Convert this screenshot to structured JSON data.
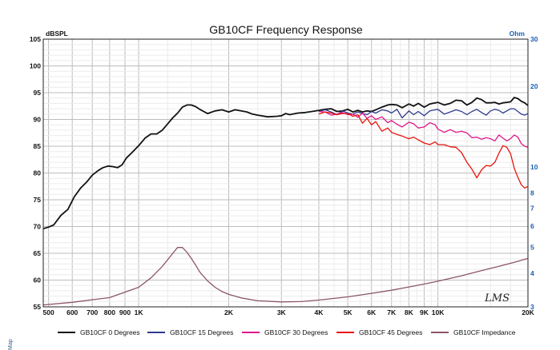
{
  "chart_data": {
    "type": "line",
    "title": "GB10CF Frequency Response",
    "ylabel": "dBSPL",
    "y2label": "Ohm",
    "xscale": "log",
    "xlim": [
      480,
      20000
    ],
    "ylim": [
      55,
      105
    ],
    "y2lim": [
      3,
      30
    ],
    "grid": true,
    "legend_position": "bottom",
    "x_ticks": [
      {
        "v": 500,
        "label": "500"
      },
      {
        "v": 600,
        "label": "600"
      },
      {
        "v": 700,
        "label": "700"
      },
      {
        "v": 800,
        "label": "800"
      },
      {
        "v": 900,
        "label": "900"
      },
      {
        "v": 1000,
        "label": "1K"
      },
      {
        "v": 2000,
        "label": "2K"
      },
      {
        "v": 3000,
        "label": "3K"
      },
      {
        "v": 4000,
        "label": "4K"
      },
      {
        "v": 5000,
        "label": "5K"
      },
      {
        "v": 6000,
        "label": "6K"
      },
      {
        "v": 7000,
        "label": "7K"
      },
      {
        "v": 8000,
        "label": "8K"
      },
      {
        "v": 9000,
        "label": "9K"
      },
      {
        "v": 10000,
        "label": "10K"
      },
      {
        "v": 20000,
        "label": "20K"
      }
    ],
    "y_ticks": [
      {
        "v": 55,
        "label": "55"
      },
      {
        "v": 60,
        "label": "60"
      },
      {
        "v": 65,
        "label": "65"
      },
      {
        "v": 70,
        "label": "70"
      },
      {
        "v": 75,
        "label": "75"
      },
      {
        "v": 80,
        "label": "80"
      },
      {
        "v": 85,
        "label": "85"
      },
      {
        "v": 90,
        "label": "90"
      },
      {
        "v": 95,
        "label": "95"
      },
      {
        "v": 100,
        "label": "100"
      },
      {
        "v": 105,
        "label": "105"
      }
    ],
    "y2_ticks": [
      {
        "v": 3,
        "label": "3"
      },
      {
        "v": 4,
        "label": "4"
      },
      {
        "v": 5,
        "label": "5"
      },
      {
        "v": 6,
        "label": "6"
      },
      {
        "v": 7,
        "label": "7"
      },
      {
        "v": 8,
        "label": "8"
      },
      {
        "v": 10,
        "label": "10"
      },
      {
        "v": 20,
        "label": "20"
      },
      {
        "v": 30,
        "label": "30"
      }
    ],
    "series": [
      {
        "name": "GB10CF 0 Degrees",
        "color": "#111111",
        "axis": "left",
        "x": [
          480,
          500,
          520,
          550,
          580,
          610,
          640,
          670,
          700,
          730,
          760,
          790,
          820,
          850,
          880,
          910,
          950,
          1000,
          1050,
          1100,
          1150,
          1200,
          1250,
          1300,
          1350,
          1400,
          1450,
          1500,
          1550,
          1600,
          1700,
          1800,
          1900,
          2000,
          2100,
          2200,
          2300,
          2400,
          2500,
          2700,
          2900,
          3000,
          3100,
          3200,
          3400,
          3600,
          3800,
          4000,
          4200,
          4400,
          4600,
          4800,
          5000,
          5200,
          5400,
          5600,
          5800,
          6000,
          6200,
          6500,
          6800,
          7000,
          7300,
          7600,
          8000,
          8300,
          8600,
          9000,
          9400,
          9800,
          10000,
          10500,
          11000,
          11500,
          12000,
          12500,
          13000,
          13500,
          14000,
          14500,
          15000,
          15500,
          16000,
          16500,
          17000,
          17500,
          18000,
          18500,
          19000,
          19500,
          20000
        ],
        "y": [
          69.6,
          69.9,
          70.3,
          72.1,
          73.2,
          75.6,
          77.2,
          78.3,
          79.6,
          80.4,
          81.0,
          81.3,
          81.2,
          81.0,
          81.5,
          82.8,
          83.8,
          85.1,
          86.5,
          87.3,
          87.3,
          88.0,
          89.2,
          90.3,
          91.2,
          92.3,
          92.7,
          92.7,
          92.4,
          91.9,
          91.1,
          91.6,
          91.8,
          91.4,
          91.8,
          91.6,
          91.4,
          91.0,
          90.8,
          90.5,
          90.6,
          90.7,
          91.1,
          90.9,
          91.2,
          91.3,
          91.5,
          91.7,
          91.9,
          92.0,
          91.5,
          91.6,
          91.9,
          91.4,
          91.7,
          91.4,
          91.6,
          91.5,
          91.8,
          92.3,
          92.7,
          92.8,
          92.7,
          92.2,
          92.9,
          92.5,
          93.0,
          92.3,
          92.9,
          93.1,
          93.2,
          92.7,
          93.0,
          93.6,
          93.5,
          92.7,
          93.2,
          94.0,
          93.7,
          93.1,
          93.1,
          93.2,
          92.9,
          93.1,
          93.2,
          93.3,
          94.1,
          93.9,
          93.4,
          93.1,
          92.6
        ]
      },
      {
        "name": "GB10CF 15 Degrees",
        "color": "#2e3a8f",
        "axis": "left",
        "x": [
          4000,
          4200,
          4400,
          4600,
          4800,
          5000,
          5200,
          5400,
          5600,
          5800,
          6000,
          6200,
          6500,
          6800,
          7000,
          7300,
          7600,
          8000,
          8300,
          8600,
          9000,
          9400,
          9800,
          10000,
          10500,
          11000,
          11500,
          12000,
          12500,
          13000,
          13500,
          14000,
          14500,
          15000,
          15500,
          16000,
          16500,
          17000,
          17500,
          18000,
          18500,
          19000,
          19500,
          20000
        ],
        "y": [
          91.5,
          91.8,
          91.4,
          90.9,
          91.6,
          91.2,
          91.0,
          91.4,
          91.1,
          90.9,
          91.5,
          91.2,
          91.8,
          91.6,
          91.2,
          91.9,
          90.3,
          91.6,
          90.9,
          91.5,
          90.7,
          91.6,
          91.8,
          91.9,
          91.0,
          91.4,
          91.8,
          91.5,
          90.9,
          91.5,
          91.9,
          91.3,
          90.8,
          91.6,
          91.9,
          91.7,
          91.2,
          91.6,
          92.0,
          92.0,
          91.5,
          91.0,
          90.8,
          91.1
        ]
      },
      {
        "name": "GB10CF 30 Degrees",
        "color": "#e0168a",
        "axis": "left",
        "x": [
          4000,
          4200,
          4400,
          4600,
          4800,
          5000,
          5200,
          5400,
          5600,
          5800,
          6000,
          6200,
          6500,
          6800,
          7000,
          7300,
          7600,
          8000,
          8300,
          8600,
          9000,
          9400,
          9800,
          10000,
          10500,
          11000,
          11500,
          12000,
          12500,
          13000,
          13500,
          14000,
          14500,
          15000,
          15500,
          16000,
          16500,
          17000,
          17500,
          18000,
          18500,
          19000,
          19500,
          20000
        ],
        "y": [
          91.5,
          91.4,
          90.8,
          91.0,
          91.3,
          90.9,
          91.0,
          90.4,
          91.2,
          90.2,
          90.7,
          90.0,
          90.5,
          89.4,
          89.8,
          89.1,
          88.6,
          89.5,
          89.2,
          88.4,
          88.6,
          89.4,
          89.0,
          88.2,
          87.6,
          88.1,
          87.6,
          87.8,
          87.5,
          86.6,
          86.7,
          86.3,
          86.6,
          86.4,
          86.0,
          87.1,
          86.5,
          86.0,
          86.4,
          87.1,
          86.7,
          85.5,
          85.0,
          84.8
        ]
      },
      {
        "name": "GB10CF 45 Degrees",
        "color": "#e8150c",
        "axis": "left",
        "x": [
          4000,
          4200,
          4400,
          4600,
          4800,
          5000,
          5200,
          5400,
          5600,
          5800,
          6000,
          6200,
          6500,
          6800,
          7000,
          7300,
          7600,
          8000,
          8300,
          8600,
          9000,
          9400,
          9800,
          10000,
          10500,
          11000,
          11500,
          12000,
          12500,
          13000,
          13500,
          14000,
          14500,
          15000,
          15500,
          16000,
          16500,
          17000,
          17500,
          18000,
          18500,
          19000,
          19500,
          20000
        ],
        "y": [
          91.0,
          91.4,
          91.2,
          90.9,
          91.1,
          91.1,
          90.6,
          90.9,
          89.3,
          90.2,
          89.0,
          89.6,
          87.8,
          88.4,
          87.6,
          87.2,
          86.9,
          86.4,
          86.7,
          86.2,
          85.6,
          85.3,
          85.8,
          85.3,
          85.3,
          84.9,
          84.8,
          83.8,
          82.0,
          80.7,
          79.1,
          80.6,
          81.4,
          81.3,
          82.0,
          83.7,
          85.1,
          84.8,
          83.6,
          80.9,
          79.2,
          77.8,
          77.2,
          77.5
        ]
      },
      {
        "name": "GB10CF Impedance",
        "color": "#8b5568",
        "axis": "right",
        "x": [
          480,
          600,
          800,
          1000,
          1100,
          1200,
          1300,
          1350,
          1400,
          1450,
          1500,
          1550,
          1600,
          1700,
          1800,
          1900,
          2000,
          2200,
          2500,
          3000,
          3500,
          4000,
          5000,
          6000,
          7000,
          8000,
          9000,
          10000,
          12000,
          14000,
          16000,
          18000,
          20000
        ],
        "y": [
          3.05,
          3.12,
          3.25,
          3.55,
          3.85,
          4.25,
          4.75,
          5.0,
          5.0,
          4.8,
          4.55,
          4.3,
          4.05,
          3.75,
          3.55,
          3.42,
          3.34,
          3.24,
          3.16,
          3.13,
          3.14,
          3.18,
          3.27,
          3.37,
          3.46,
          3.56,
          3.65,
          3.74,
          3.92,
          4.1,
          4.25,
          4.4,
          4.55
        ]
      }
    ],
    "annotations": [
      "LMS"
    ]
  },
  "side_label": "Map"
}
